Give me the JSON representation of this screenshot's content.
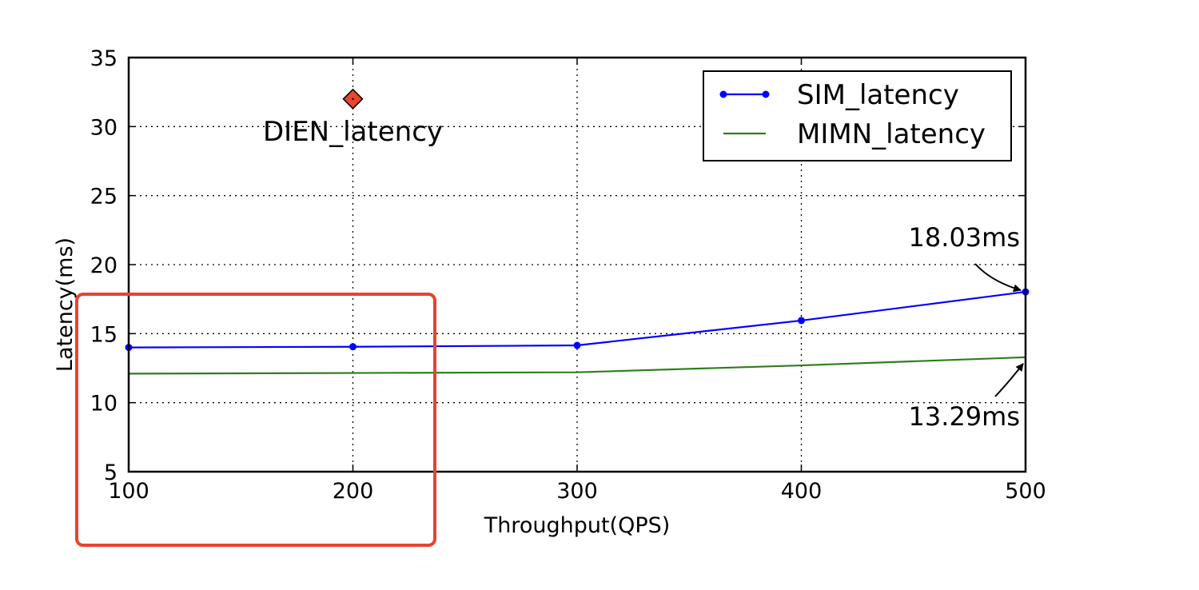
{
  "chart_data": {
    "type": "line",
    "title": "",
    "xlabel": "Throughput(QPS)",
    "ylabel": "Latency(ms)",
    "xlim": [
      100,
      500
    ],
    "ylim": [
      5,
      35
    ],
    "x_ticks": [
      "100",
      "200",
      "300",
      "400",
      "500"
    ],
    "y_ticks": [
      "5",
      "10",
      "15",
      "20",
      "25",
      "30",
      "35"
    ],
    "grid": true,
    "legend_position": "top-right",
    "series": [
      {
        "name": "SIM_latency",
        "color": "#0000ff",
        "marker": "circle",
        "x": [
          100,
          200,
          300,
          400,
          500
        ],
        "y": [
          14.0,
          14.05,
          14.15,
          15.95,
          18.03
        ]
      },
      {
        "name": "MIMN_latency",
        "color": "#2e7d1e",
        "marker": "none",
        "x": [
          100,
          200,
          300,
          400,
          500
        ],
        "y": [
          12.1,
          12.15,
          12.2,
          12.7,
          13.29
        ]
      }
    ],
    "points": [
      {
        "name": "DIEN_latency",
        "x": 200,
        "y": 32,
        "color": "#e8462e",
        "marker": "diamond"
      }
    ],
    "annotations": [
      {
        "text": "18.03ms",
        "x": 500,
        "y": 18.03
      },
      {
        "text": "13.29ms",
        "x": 500,
        "y": 13.29
      }
    ],
    "highlight_color": "#e8432e"
  }
}
